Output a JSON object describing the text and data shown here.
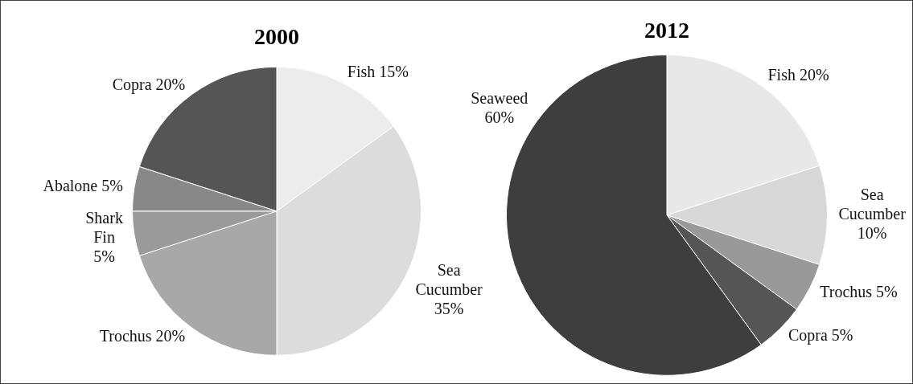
{
  "chart_data": [
    {
      "type": "pie",
      "title": "2000",
      "categories": [
        "Fish",
        "Sea Cucumber",
        "Trochus",
        "Shark Fin",
        "Abalone",
        "Copra"
      ],
      "values": [
        15,
        35,
        20,
        5,
        5,
        20
      ],
      "value_labels": [
        "15%",
        "35%",
        "20%",
        "5%",
        "5%",
        "20%"
      ],
      "colors": [
        "#ececec",
        "#dcdcdc",
        "#a8a8a8",
        "#9a9a9a",
        "#888888",
        "#555555"
      ],
      "legend": false
    },
    {
      "type": "pie",
      "title": "2012",
      "categories": [
        "Fish",
        "Sea Cucumber",
        "Trochus",
        "Copra",
        "Seaweed"
      ],
      "values": [
        20,
        10,
        5,
        5,
        60
      ],
      "value_labels": [
        "20%",
        "10%",
        "5%",
        "5%",
        "60%"
      ],
      "colors": [
        "#e8e8e8",
        "#d8d8d8",
        "#999999",
        "#555555",
        "#3e3e3e"
      ],
      "legend": false
    }
  ]
}
